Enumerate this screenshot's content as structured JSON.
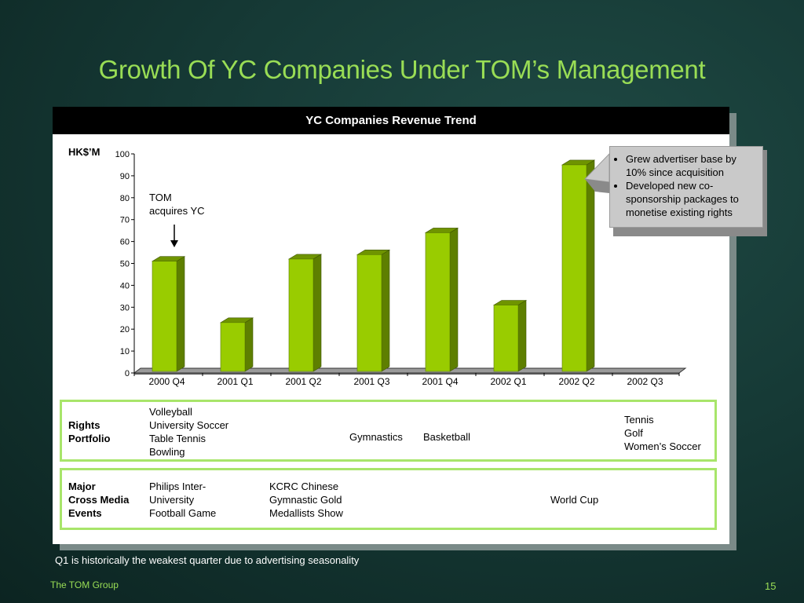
{
  "slide": {
    "title": "Growth Of YC Companies Under TOM’s Management",
    "footnote": "Q1 is historically the weakest quarter due to advertising seasonality",
    "brand": "The TOM Group",
    "page_number": "15"
  },
  "chart_data": {
    "type": "bar",
    "title": "YC Companies Revenue Trend",
    "ylabel": "HK$’M",
    "xlabel": "",
    "categories": [
      "2000 Q4",
      "2001 Q1",
      "2001 Q2",
      "2001 Q3",
      "2001 Q4",
      "2002 Q1",
      "2002 Q2",
      "2002 Q3"
    ],
    "values": [
      51,
      23,
      52,
      54,
      64,
      31,
      95,
      null
    ],
    "ylim": [
      0,
      100
    ],
    "yticks": [
      0,
      10,
      20,
      30,
      40,
      50,
      60,
      70,
      80,
      90,
      100
    ],
    "bar_color": "#99cc00",
    "grid": false,
    "annotation": {
      "line1": "TOM",
      "line2": "acquires YC"
    },
    "callout": {
      "bullet1": "Grew advertiser base by 10% since acquisition",
      "bullet2": "Developed new co-sponsorship packages to monetise existing rights"
    }
  },
  "rights": {
    "label_line1": "Rights",
    "label_line2": "Portfolio",
    "q4_2000": [
      "Volleyball",
      "University Soccer",
      "Table Tennis",
      "Bowling"
    ],
    "q3_2001": "Gymnastics",
    "q4_2001": "Basketball",
    "q3_2002": [
      "Tennis",
      "Golf",
      "Women’s Soccer"
    ]
  },
  "events": {
    "label_line1": "Major",
    "label_line2": "Cross Media",
    "label_line3": "Events",
    "q4_2000": [
      "Philips Inter-",
      "University",
      "Football Game"
    ],
    "q2_2001": [
      "KCRC Chinese",
      "Gymnastic Gold",
      "Medallists Show"
    ],
    "q2_2002": "World Cup"
  }
}
